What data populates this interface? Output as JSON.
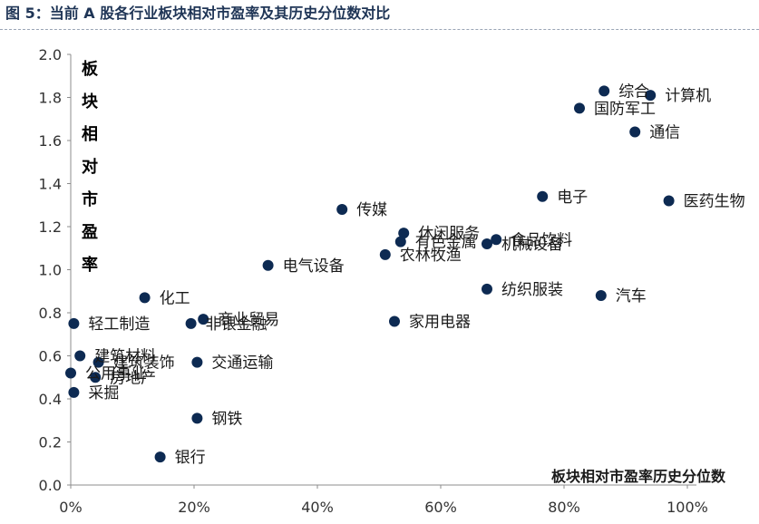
{
  "header": {
    "title": "图 5：当前 A 股各行业板块相对市盈率及其历史分位数对比"
  },
  "chart_data": {
    "type": "scatter",
    "title": "图 5：当前 A 股各行业板块相对市盈率及其历史分位数对比",
    "xlabel": "板块相对市盈率历史分位数",
    "ylabel": "板块相对市盈率",
    "xlim": [
      0,
      100
    ],
    "ylim": [
      0,
      2.0
    ],
    "x_unit": "%",
    "x_ticks": [
      "0%",
      "20%",
      "40%",
      "60%",
      "80%",
      "100%"
    ],
    "y_ticks": [
      "0.0",
      "0.2",
      "0.4",
      "0.6",
      "0.8",
      "1.0",
      "1.2",
      "1.4",
      "1.6",
      "1.8",
      "2.0"
    ],
    "grid": false,
    "marker_color": "#0d2a52",
    "points": [
      {
        "label": "综合",
        "x": 86.5,
        "y": 1.83
      },
      {
        "label": "计算机",
        "x": 94.0,
        "y": 1.81
      },
      {
        "label": "国防军工",
        "x": 82.5,
        "y": 1.75
      },
      {
        "label": "通信",
        "x": 91.5,
        "y": 1.64
      },
      {
        "label": "电子",
        "x": 76.5,
        "y": 1.34
      },
      {
        "label": "医药生物",
        "x": 97.0,
        "y": 1.32
      },
      {
        "label": "传媒",
        "x": 44.0,
        "y": 1.28
      },
      {
        "label": "休闲服务",
        "x": 54.0,
        "y": 1.17
      },
      {
        "label": "食品饮料",
        "x": 69.0,
        "y": 1.14
      },
      {
        "label": "有色金属",
        "x": 53.5,
        "y": 1.13
      },
      {
        "label": "机械设备",
        "x": 67.5,
        "y": 1.12
      },
      {
        "label": "农林牧渔",
        "x": 51.0,
        "y": 1.07
      },
      {
        "label": "电气设备",
        "x": 32.0,
        "y": 1.02
      },
      {
        "label": "纺织服装",
        "x": 67.5,
        "y": 0.91
      },
      {
        "label": "汽车",
        "x": 86.0,
        "y": 0.88
      },
      {
        "label": "化工",
        "x": 12.0,
        "y": 0.87
      },
      {
        "label": "商业贸易",
        "x": 21.5,
        "y": 0.77
      },
      {
        "label": "家用电器",
        "x": 52.5,
        "y": 0.76
      },
      {
        "label": "轻工制造",
        "x": 0.5,
        "y": 0.75
      },
      {
        "label": "非银金融",
        "x": 19.5,
        "y": 0.75
      },
      {
        "label": "建筑材料",
        "x": 1.5,
        "y": 0.6
      },
      {
        "label": "建筑装饰",
        "x": 4.5,
        "y": 0.57
      },
      {
        "label": "交通运输",
        "x": 20.5,
        "y": 0.57
      },
      {
        "label": "公用事业",
        "x": 0.0,
        "y": 0.52
      },
      {
        "label": "房地产",
        "x": 4.0,
        "y": 0.5
      },
      {
        "label": "采掘",
        "x": 0.5,
        "y": 0.43
      },
      {
        "label": "钢铁",
        "x": 20.5,
        "y": 0.31
      },
      {
        "label": "银行",
        "x": 14.5,
        "y": 0.13
      }
    ]
  }
}
